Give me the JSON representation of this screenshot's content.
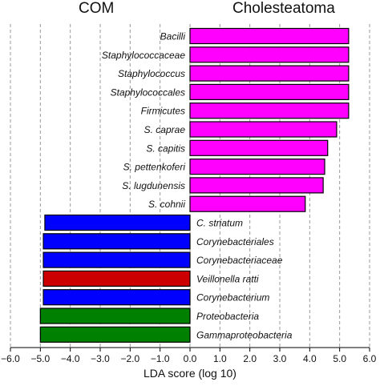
{
  "chart_data": {
    "type": "bar",
    "orientation": "horizontal",
    "group_labels": {
      "left": "COM",
      "right": "Cholesteatoma"
    },
    "xlabel": "LDA score (log 10)",
    "xlim": [
      -6.0,
      6.0
    ],
    "xticks": [
      "−6.0",
      "−5.0",
      "−4.0",
      "−3.0",
      "−2.0",
      "−1.0",
      "0.0",
      "1.0",
      "2.0",
      "3.0",
      "4.0",
      "5.0",
      "6.0"
    ],
    "xtick_values": [
      -6,
      -5,
      -4,
      -3,
      -2,
      -1,
      0,
      1,
      2,
      3,
      4,
      5,
      6
    ],
    "grid": "vertical dashed",
    "bars": [
      {
        "label": "Bacilli",
        "value": 5.3,
        "color": "#ff00ff"
      },
      {
        "label": "Staphylococcaceae",
        "value": 5.3,
        "color": "#ff00ff"
      },
      {
        "label": "Staphylococcus",
        "value": 5.3,
        "color": "#ff00ff"
      },
      {
        "label": "Staphylococcales",
        "value": 5.3,
        "color": "#ff00ff"
      },
      {
        "label": "Firmicutes",
        "value": 5.3,
        "color": "#ff00ff"
      },
      {
        "label": "S. caprae",
        "value": 4.9,
        "color": "#ff00ff"
      },
      {
        "label": "S. capitis",
        "value": 4.6,
        "color": "#ff00ff"
      },
      {
        "label": "S. pettenkoferi",
        "value": 4.5,
        "color": "#ff00ff"
      },
      {
        "label": "S. lugdunensis",
        "value": 4.45,
        "color": "#ff00ff"
      },
      {
        "label": "S. cohnii",
        "value": 3.85,
        "color": "#ff00ff"
      },
      {
        "label": "C. striatum",
        "value": -4.85,
        "color": "#0000ff"
      },
      {
        "label": "Corynebacteriales",
        "value": -4.9,
        "color": "#0000ff"
      },
      {
        "label": "Corynebacteriaceae",
        "value": -4.9,
        "color": "#0000ff"
      },
      {
        "label": "Veillonella ratti",
        "value": -4.9,
        "color": "#cc0000"
      },
      {
        "label": "Corynebacterium",
        "value": -4.9,
        "color": "#0000ff"
      },
      {
        "label": "Proteobacteria",
        "value": -5.0,
        "color": "#008000"
      },
      {
        "label": "Gammaproteobacteria",
        "value": -5.0,
        "color": "#008000"
      }
    ]
  }
}
